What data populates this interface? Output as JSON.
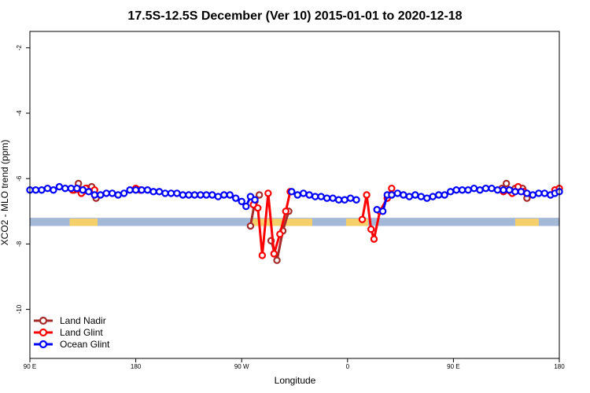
{
  "chart_data": {
    "type": "line",
    "title": "17.5S-12.5S December (Ver 10)   2015-01-01 to 2020-12-18",
    "xlabel": "Longitude",
    "ylabel": "XCO2 - MLO trend (ppm)",
    "xlim": [
      -90,
      270
    ],
    "ylim": [
      -11.5,
      -1.5
    ],
    "x_ticks": [
      {
        "value": -90,
        "label": "90 E"
      },
      {
        "value": -18,
        "label": "180"
      },
      {
        "value": 54,
        "label": "90 W"
      },
      {
        "value": 126,
        "label": "0"
      },
      {
        "value": 198,
        "label": "90 E"
      },
      {
        "value": 270,
        "label": "180"
      }
    ],
    "y_ticks": [
      -2,
      -4,
      -6,
      -8,
      -10
    ],
    "grid": false,
    "legend_position": "bottom-left",
    "colors": {
      "land_nadir": "#a52a2a",
      "land_glint": "#ff0000",
      "ocean_glint": "#0000ff",
      "ocean_band": "#a4b8d8",
      "land_band": "#f5d06a"
    },
    "band": {
      "y_range": [
        -7.45,
        -7.2
      ],
      "land_segments": [
        [
          -63,
          -44
        ],
        [
          60,
          102
        ],
        [
          125,
          140
        ],
        [
          240,
          256
        ]
      ]
    },
    "series": [
      {
        "name": "Land Nadir",
        "key": "land_nadir",
        "segments": [
          [
            [
              -60,
              -6.35
            ],
            [
              -57,
              -6.15
            ],
            [
              -54,
              -6.4
            ],
            [
              -51,
              -6.3
            ],
            [
              -48,
              -6.25
            ],
            [
              -45,
              -6.6
            ]
          ],
          [
            [
              60,
              -7.45
            ],
            [
              63,
              -6.7
            ],
            [
              66,
              -6.5
            ]
          ],
          [
            [
              74,
              -7.9
            ],
            [
              78,
              -8.5
            ],
            [
              82,
              -7.6
            ],
            [
              86,
              -7.0
            ]
          ],
          [
            [
              231,
              -6.3
            ],
            [
              234,
              -6.15
            ],
            [
              237,
              -6.4
            ],
            [
              240,
              -6.3
            ]
          ],
          [
            [
              245,
              -6.3
            ],
            [
              248,
              -6.6
            ]
          ]
        ]
      },
      {
        "name": "Land Glint",
        "key": "land_glint",
        "segments": [
          [
            [
              -61,
              -6.35
            ],
            [
              -55,
              -6.45
            ],
            [
              -52,
              -6.3
            ],
            [
              -46,
              -6.35
            ]
          ],
          [
            [
              -18,
              -6.3
            ],
            [
              -15,
              -6.35
            ]
          ],
          [
            [
              62,
              -6.8
            ],
            [
              65,
              -6.9
            ],
            [
              68,
              -8.35
            ],
            [
              72,
              -6.45
            ],
            [
              76,
              -8.3
            ],
            [
              80,
              -7.7
            ],
            [
              84,
              -7.0
            ],
            [
              87,
              -6.4
            ]
          ],
          [
            [
              136,
              -7.25
            ],
            [
              139,
              -6.5
            ],
            [
              142,
              -7.55
            ],
            [
              144,
              -7.85
            ],
            [
              148,
              -7.0
            ],
            [
              153,
              -6.6
            ],
            [
              156,
              -6.3
            ]
          ],
          [
            [
              232,
              -6.4
            ],
            [
              238,
              -6.45
            ],
            [
              242,
              -6.25
            ],
            [
              246,
              -6.4
            ]
          ],
          [
            [
              267,
              -6.35
            ],
            [
              270,
              -6.3
            ]
          ]
        ]
      },
      {
        "name": "Ocean Glint",
        "key": "ocean_glint",
        "segments": [
          [
            [
              -90,
              -6.35
            ],
            [
              -86,
              -6.35
            ],
            [
              -82,
              -6.35
            ],
            [
              -78,
              -6.3
            ],
            [
              -74,
              -6.35
            ],
            [
              -70,
              -6.25
            ],
            [
              -66,
              -6.3
            ],
            [
              -62,
              -6.3
            ],
            [
              -58,
              -6.3
            ],
            [
              -54,
              -6.35
            ],
            [
              -50,
              -6.4
            ],
            [
              -46,
              -6.5
            ],
            [
              -42,
              -6.5
            ],
            [
              -38,
              -6.45
            ],
            [
              -34,
              -6.45
            ],
            [
              -30,
              -6.5
            ],
            [
              -26,
              -6.45
            ],
            [
              -22,
              -6.35
            ],
            [
              -18,
              -6.35
            ],
            [
              -14,
              -6.35
            ],
            [
              -10,
              -6.35
            ],
            [
              -6,
              -6.4
            ],
            [
              -2,
              -6.4
            ],
            [
              2,
              -6.45
            ],
            [
              6,
              -6.45
            ],
            [
              10,
              -6.45
            ],
            [
              14,
              -6.5
            ],
            [
              18,
              -6.5
            ],
            [
              22,
              -6.5
            ],
            [
              26,
              -6.5
            ],
            [
              30,
              -6.5
            ],
            [
              34,
              -6.5
            ],
            [
              38,
              -6.55
            ],
            [
              42,
              -6.5
            ],
            [
              46,
              -6.5
            ],
            [
              50,
              -6.6
            ],
            [
              54,
              -6.7
            ],
            [
              57,
              -6.85
            ],
            [
              60,
              -6.55
            ],
            [
              63,
              -6.65
            ]
          ],
          [
            [
              88,
              -6.4
            ],
            [
              92,
              -6.5
            ],
            [
              96,
              -6.45
            ],
            [
              100,
              -6.5
            ],
            [
              104,
              -6.55
            ],
            [
              108,
              -6.55
            ],
            [
              112,
              -6.6
            ],
            [
              116,
              -6.6
            ],
            [
              120,
              -6.65
            ],
            [
              124,
              -6.65
            ],
            [
              128,
              -6.6
            ],
            [
              132,
              -6.65
            ]
          ],
          [
            [
              146,
              -6.95
            ],
            [
              150,
              -7.0
            ],
            [
              153,
              -6.5
            ],
            [
              156,
              -6.5
            ],
            [
              160,
              -6.45
            ],
            [
              164,
              -6.5
            ],
            [
              168,
              -6.55
            ],
            [
              172,
              -6.5
            ],
            [
              176,
              -6.55
            ],
            [
              180,
              -6.6
            ],
            [
              184,
              -6.55
            ],
            [
              188,
              -6.5
            ],
            [
              192,
              -6.5
            ],
            [
              196,
              -6.4
            ],
            [
              200,
              -6.35
            ],
            [
              204,
              -6.35
            ],
            [
              208,
              -6.35
            ],
            [
              212,
              -6.3
            ],
            [
              216,
              -6.35
            ],
            [
              220,
              -6.3
            ],
            [
              224,
              -6.3
            ],
            [
              228,
              -6.35
            ],
            [
              232,
              -6.35
            ],
            [
              236,
              -6.35
            ],
            [
              240,
              -6.4
            ],
            [
              244,
              -6.4
            ],
            [
              248,
              -6.45
            ],
            [
              252,
              -6.5
            ],
            [
              256,
              -6.45
            ],
            [
              260,
              -6.45
            ],
            [
              264,
              -6.5
            ],
            [
              267,
              -6.45
            ],
            [
              270,
              -6.4
            ]
          ]
        ]
      }
    ]
  }
}
